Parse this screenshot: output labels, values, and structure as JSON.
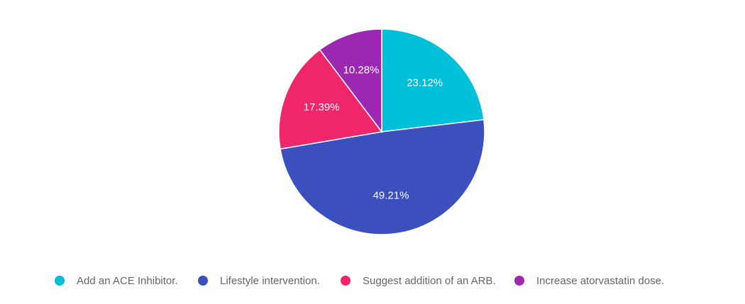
{
  "chart_data": {
    "type": "pie",
    "title": "",
    "categories": [
      "Add an ACE Inhibitor.",
      "Lifestyle intervention.",
      "Suggest addition of an ARB.",
      "Increase atorvastatin dose."
    ],
    "values": [
      23.12,
      49.21,
      17.39,
      10.28
    ],
    "data_labels": [
      "23.12%",
      "49.21%",
      "17.39%",
      "10.28%"
    ],
    "colors": [
      "#00c0d9",
      "#3b4fbd",
      "#f0266b",
      "#9c27b0"
    ],
    "start_angle_deg": 0,
    "direction": "clockwise",
    "legend_placement": "bottom"
  }
}
